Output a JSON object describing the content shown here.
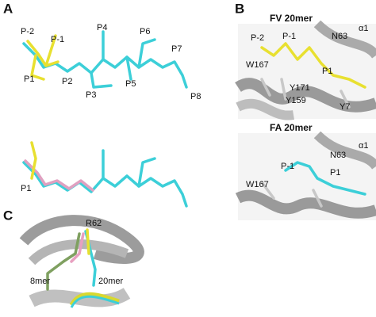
{
  "panels": [
    {
      "label": "A",
      "labels": [
        "P-2",
        "P-1",
        "P4",
        "P6",
        "P7",
        "P1",
        "P2",
        "P5",
        "P3",
        "P8",
        "P1"
      ]
    },
    {
      "label": "B",
      "titles": [
        "FV 20mer",
        "FA 20mer"
      ],
      "labels": [
        "P-2",
        "P-1",
        "N63",
        "α1",
        "W167",
        "P1",
        "Y171",
        "Y159",
        "Y7",
        "N63",
        "α1",
        "P-1",
        "P1",
        "W167"
      ]
    },
    {
      "label": "C",
      "labels": [
        "R62",
        "8mer",
        "20mer"
      ]
    }
  ]
}
